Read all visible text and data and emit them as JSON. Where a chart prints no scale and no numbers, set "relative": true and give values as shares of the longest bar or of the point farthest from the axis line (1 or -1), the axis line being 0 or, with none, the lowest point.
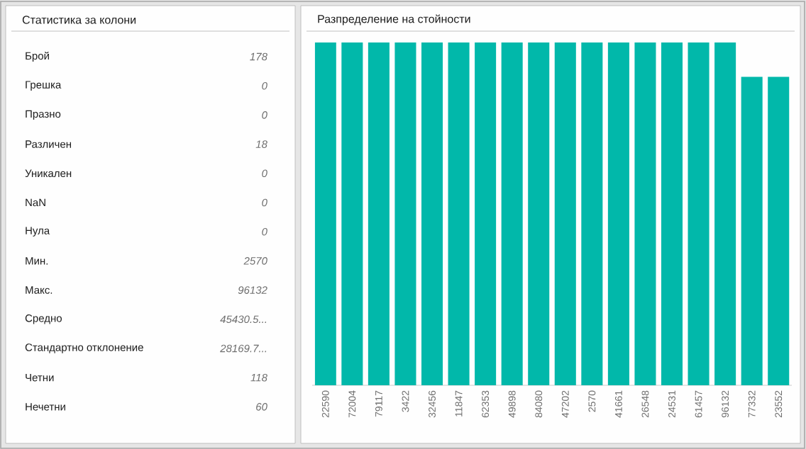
{
  "chart_data": [
    {
      "type": "other",
      "title": "Статистика за колони",
      "annotations": [
        "Брой",
        "178",
        "Грешка",
        "0",
        "Празно",
        "0",
        "Различен",
        "18",
        "Уникален",
        "0",
        "NaN",
        "0",
        "Нула",
        "0",
        "Мин.",
        "2570",
        "Макс.",
        "96132",
        "Средно",
        "45430.5...",
        "Стандартно отклонение",
        "28169.7...",
        "Четни",
        "118",
        "Нечетни",
        "60"
      ]
    },
    {
      "type": "bar",
      "title": "Разпределение на стойности",
      "relative": true,
      "color": "#01b8aa",
      "categories": [
        "22590",
        "72004",
        "79117",
        "3422",
        "32456",
        "11847",
        "62353",
        "49898",
        "84080",
        "47202",
        "2570",
        "41661",
        "26548",
        "24531",
        "61457",
        "96132",
        "77332",
        "23552"
      ],
      "values": [
        1,
        1,
        1,
        1,
        1,
        1,
        1,
        1,
        1,
        1,
        1,
        1,
        1,
        1,
        1,
        1,
        0.9,
        0.9
      ]
    }
  ]
}
